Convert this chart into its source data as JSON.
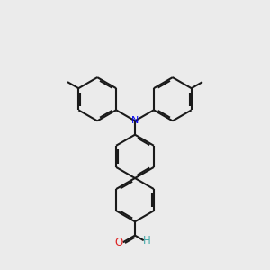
{
  "bg_color": "#ebebeb",
  "bond_color": "#1a1a1a",
  "N_color": "#0000ee",
  "O_color": "#dd2222",
  "H_color": "#44aaaa",
  "line_width": 1.5,
  "dbo": 0.06,
  "figsize": [
    3.0,
    3.0
  ],
  "dpi": 100,
  "xlim": [
    0,
    10
  ],
  "ylim": [
    0,
    10
  ]
}
